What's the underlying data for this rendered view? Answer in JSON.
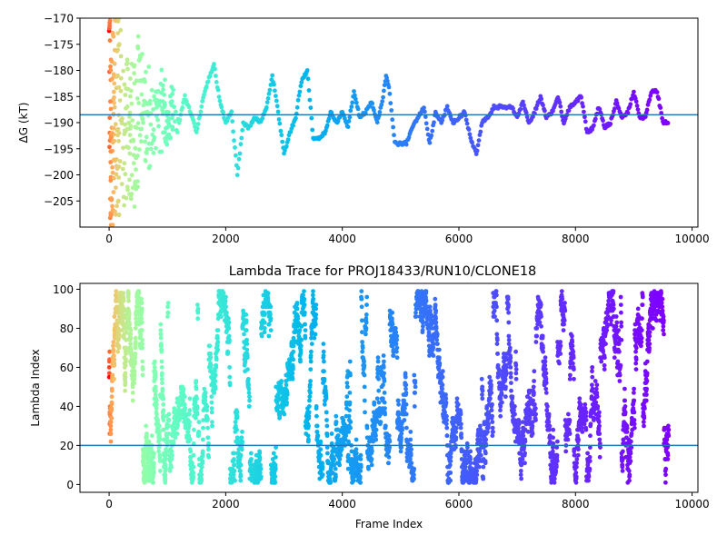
{
  "chart_data": [
    {
      "type": "scatter",
      "title": "",
      "xlabel": "",
      "ylabel": "ΔG (kT)",
      "xlim": [
        -500,
        10100
      ],
      "ylim": [
        -210,
        -170
      ],
      "xticks": [
        "0",
        "2000",
        "4000",
        "6000",
        "8000",
        "10000"
      ],
      "xtick_values": [
        0,
        2000,
        4000,
        6000,
        8000,
        10000
      ],
      "yticks": [
        "−170",
        "−175",
        "−180",
        "−185",
        "−190",
        "−195",
        "−200",
        "−205"
      ],
      "ytick_values": [
        -170,
        -175,
        -180,
        -185,
        -190,
        -195,
        -200,
        -205
      ],
      "hline": -188.5,
      "hline_color": "#1f77b4",
      "colormap": "rainbow (early frames red, late frames violet)",
      "trace": [
        [
          0,
          -170
        ],
        [
          20,
          -205
        ],
        [
          40,
          -190
        ],
        [
          60,
          -200
        ],
        [
          80,
          -180
        ],
        [
          100,
          -195
        ],
        [
          150,
          -173
        ],
        [
          200,
          -185
        ],
        [
          250,
          -202
        ],
        [
          300,
          -178
        ],
        [
          350,
          -192
        ],
        [
          400,
          -186
        ],
        [
          450,
          -208
        ],
        [
          500,
          -176
        ],
        [
          550,
          -191
        ],
        [
          600,
          -184
        ],
        [
          700,
          -194
        ],
        [
          800,
          -188
        ],
        [
          900,
          -182
        ],
        [
          1000,
          -190
        ],
        [
          1100,
          -187
        ],
        [
          1200,
          -190
        ],
        [
          1300,
          -185
        ],
        [
          1400,
          -188
        ],
        [
          1500,
          -192
        ],
        [
          1600,
          -186
        ],
        [
          1700,
          -182
        ],
        [
          1800,
          -179
        ],
        [
          1900,
          -186
        ],
        [
          2000,
          -190
        ],
        [
          2100,
          -188
        ],
        [
          2200,
          -200
        ],
        [
          2300,
          -190
        ],
        [
          2400,
          -191
        ],
        [
          2500,
          -189
        ],
        [
          2600,
          -190
        ],
        [
          2700,
          -187
        ],
        [
          2800,
          -181
        ],
        [
          2900,
          -188
        ],
        [
          3000,
          -196
        ],
        [
          3100,
          -192
        ],
        [
          3200,
          -189
        ],
        [
          3300,
          -182
        ],
        [
          3400,
          -180
        ],
        [
          3500,
          -193
        ],
        [
          3600,
          -193
        ],
        [
          3700,
          -192
        ],
        [
          3800,
          -188
        ],
        [
          3900,
          -190
        ],
        [
          4000,
          -188
        ],
        [
          4100,
          -191
        ],
        [
          4200,
          -184
        ],
        [
          4300,
          -189
        ],
        [
          4400,
          -188
        ],
        [
          4500,
          -186
        ],
        [
          4600,
          -190
        ],
        [
          4700,
          -185
        ],
        [
          4750,
          -181
        ],
        [
          4800,
          -183
        ],
        [
          4900,
          -194
        ],
        [
          5000,
          -194
        ],
        [
          5100,
          -194
        ],
        [
          5200,
          -191
        ],
        [
          5300,
          -189
        ],
        [
          5400,
          -187
        ],
        [
          5500,
          -194
        ],
        [
          5600,
          -188
        ],
        [
          5700,
          -190
        ],
        [
          5800,
          -187
        ],
        [
          5900,
          -190
        ],
        [
          6000,
          -189
        ],
        [
          6100,
          -188
        ],
        [
          6200,
          -193
        ],
        [
          6300,
          -196
        ],
        [
          6400,
          -190
        ],
        [
          6500,
          -189
        ],
        [
          6600,
          -187
        ],
        [
          6700,
          -187
        ],
        [
          6800,
          -187
        ],
        [
          6900,
          -187
        ],
        [
          7000,
          -189
        ],
        [
          7100,
          -186
        ],
        [
          7200,
          -190
        ],
        [
          7300,
          -188
        ],
        [
          7400,
          -185
        ],
        [
          7500,
          -189
        ],
        [
          7600,
          -188
        ],
        [
          7700,
          -185
        ],
        [
          7800,
          -190
        ],
        [
          7900,
          -187
        ],
        [
          8000,
          -186
        ],
        [
          8100,
          -185
        ],
        [
          8200,
          -192
        ],
        [
          8300,
          -191
        ],
        [
          8400,
          -187
        ],
        [
          8500,
          -191
        ],
        [
          8600,
          -190
        ],
        [
          8700,
          -186
        ],
        [
          8800,
          -189
        ],
        [
          8900,
          -188
        ],
        [
          9000,
          -184
        ],
        [
          9100,
          -189
        ],
        [
          9200,
          -189
        ],
        [
          9300,
          -184
        ],
        [
          9400,
          -184
        ],
        [
          9500,
          -190
        ],
        [
          9600,
          -190
        ]
      ]
    },
    {
      "type": "scatter",
      "title": "Lambda Trace for PROJ18433/RUN10/CLONE18",
      "xlabel": "Frame Index",
      "ylabel": "Lambda Index",
      "xlim": [
        -500,
        10100
      ],
      "ylim": [
        -4,
        103
      ],
      "xticks": [
        "0",
        "2000",
        "4000",
        "6000",
        "8000",
        "10000"
      ],
      "xtick_values": [
        0,
        2000,
        4000,
        6000,
        8000,
        10000
      ],
      "yticks": [
        "0",
        "20",
        "40",
        "60",
        "80",
        "100"
      ],
      "ytick_values": [
        0,
        20,
        40,
        60,
        80,
        100
      ],
      "hline": 20,
      "hline_color": "#1f77b4",
      "lambda_range": [
        1,
        99
      ],
      "frame_range": [
        0,
        9600
      ],
      "colormap": "rainbow (early frames red, late frames violet)"
    }
  ]
}
